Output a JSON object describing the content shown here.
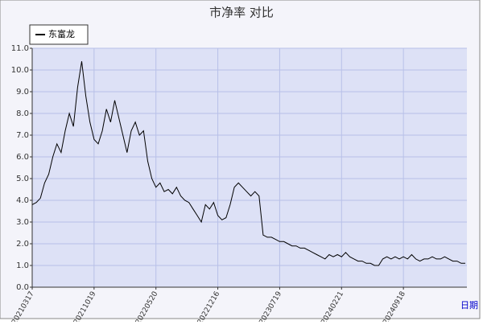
{
  "chart_data": {
    "type": "line",
    "title": "市净率  对比",
    "x_label": "日期",
    "categories": [
      "20210317",
      null,
      null,
      null,
      null,
      null,
      null,
      null,
      null,
      null,
      null,
      null,
      null,
      null,
      null,
      "20211019",
      null,
      null,
      null,
      null,
      null,
      null,
      null,
      null,
      null,
      null,
      null,
      null,
      null,
      null,
      "20220520",
      null,
      null,
      null,
      null,
      null,
      null,
      null,
      null,
      null,
      null,
      null,
      null,
      null,
      null,
      "20221216",
      null,
      null,
      null,
      null,
      null,
      null,
      null,
      null,
      null,
      null,
      null,
      null,
      null,
      null,
      "20230719",
      null,
      null,
      null,
      null,
      null,
      null,
      null,
      null,
      null,
      null,
      null,
      null,
      null,
      null,
      "20240221",
      null,
      null,
      null,
      null,
      null,
      null,
      null,
      null,
      null,
      null,
      null,
      null,
      null,
      null,
      "20240918",
      null,
      null,
      null,
      null,
      null,
      null,
      null,
      null,
      null,
      null,
      null,
      null,
      null,
      null,
      null
    ],
    "series": [
      {
        "name": "东富龙",
        "color": "#000000",
        "values": [
          3.8,
          3.9,
          4.1,
          4.8,
          5.2,
          6.0,
          6.6,
          6.2,
          7.2,
          8.0,
          7.4,
          9.2,
          10.4,
          8.8,
          7.6,
          6.8,
          6.6,
          7.2,
          8.2,
          7.6,
          8.6,
          7.8,
          7.0,
          6.2,
          7.2,
          7.6,
          7.0,
          7.2,
          5.8,
          5.0,
          4.6,
          4.8,
          4.4,
          4.5,
          4.3,
          4.6,
          4.2,
          4.0,
          3.9,
          3.6,
          3.3,
          3.0,
          3.8,
          3.6,
          3.9,
          3.3,
          3.1,
          3.2,
          3.8,
          4.6,
          4.8,
          4.6,
          4.4,
          4.2,
          4.4,
          4.2,
          2.4,
          2.3,
          2.3,
          2.2,
          2.1,
          2.1,
          2.0,
          1.9,
          1.9,
          1.8,
          1.8,
          1.7,
          1.6,
          1.5,
          1.4,
          1.3,
          1.5,
          1.4,
          1.5,
          1.4,
          1.6,
          1.4,
          1.3,
          1.2,
          1.2,
          1.1,
          1.1,
          1.0,
          1.0,
          1.3,
          1.4,
          1.3,
          1.4,
          1.3,
          1.4,
          1.3,
          1.5,
          1.3,
          1.2,
          1.3,
          1.3,
          1.4,
          1.3,
          1.3,
          1.4,
          1.3,
          1.2,
          1.2,
          1.1,
          1.1
        ]
      }
    ],
    "ylim": [
      0,
      11
    ],
    "yticks": [
      {
        "value": 0,
        "label": "0.0"
      },
      {
        "value": 1,
        "label": "1.0"
      },
      {
        "value": 2,
        "label": "2.0"
      },
      {
        "value": 3,
        "label": "3.0"
      },
      {
        "value": 4,
        "label": "4.0"
      },
      {
        "value": 5,
        "label": "5.0"
      },
      {
        "value": 6,
        "label": "6.0"
      },
      {
        "value": 7,
        "label": "7.0"
      },
      {
        "value": 8,
        "label": "8.0"
      },
      {
        "value": 9,
        "label": "9.0"
      },
      {
        "value": 10,
        "label": "10.0"
      },
      {
        "value": 11,
        "label": "11.0"
      }
    ],
    "grid": true,
    "legend": "upper left"
  }
}
